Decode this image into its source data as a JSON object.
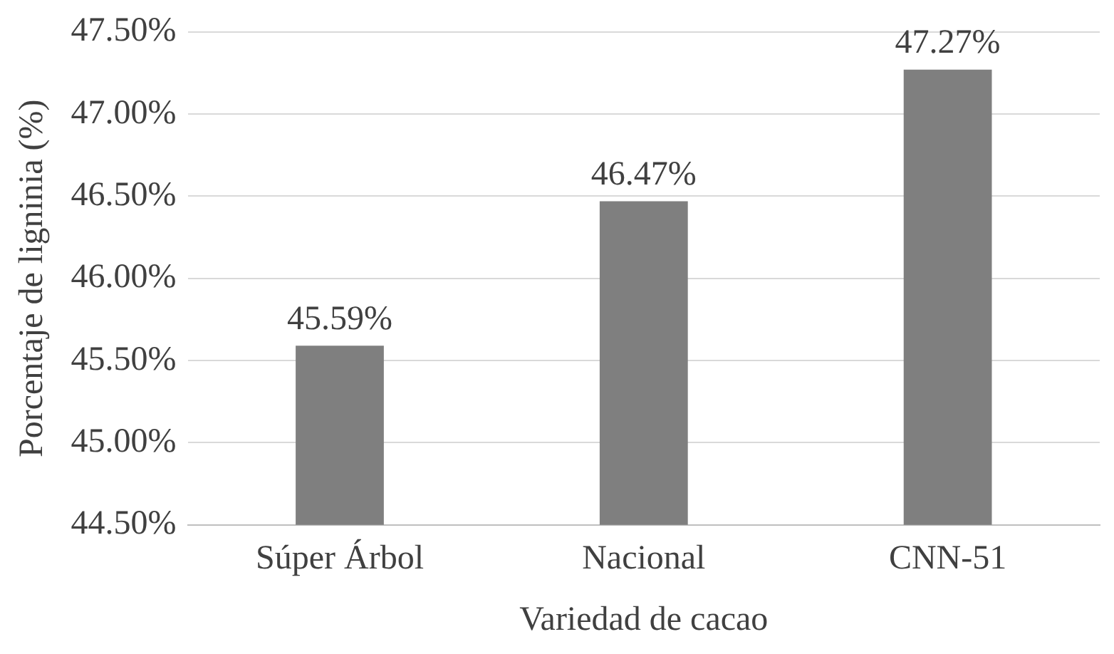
{
  "chart_data": {
    "type": "bar",
    "xlabel": "Variedad de cacao",
    "ylabel": "Porcentaje de ligninia (%)",
    "categories": [
      "Súper Árbol",
      "Nacional",
      "CNN-51"
    ],
    "values": [
      45.59,
      46.47,
      47.27
    ],
    "value_labels": [
      "45.59%",
      "46.47%",
      "47.27%"
    ],
    "color": "#7f7f7f",
    "ylim": [
      44.5,
      47.5
    ],
    "yticks": [
      {
        "value": 44.5,
        "label": "44.50%"
      },
      {
        "value": 45,
        "label": "45.00%"
      },
      {
        "value": 45.5,
        "label": "45.50%"
      },
      {
        "value": 46,
        "label": "46.00%"
      },
      {
        "value": 46.5,
        "label": "46.50%"
      },
      {
        "value": 47,
        "label": "47.00%"
      },
      {
        "value": 47.5,
        "label": "47.50%"
      }
    ],
    "grid": "y",
    "legend": false
  }
}
